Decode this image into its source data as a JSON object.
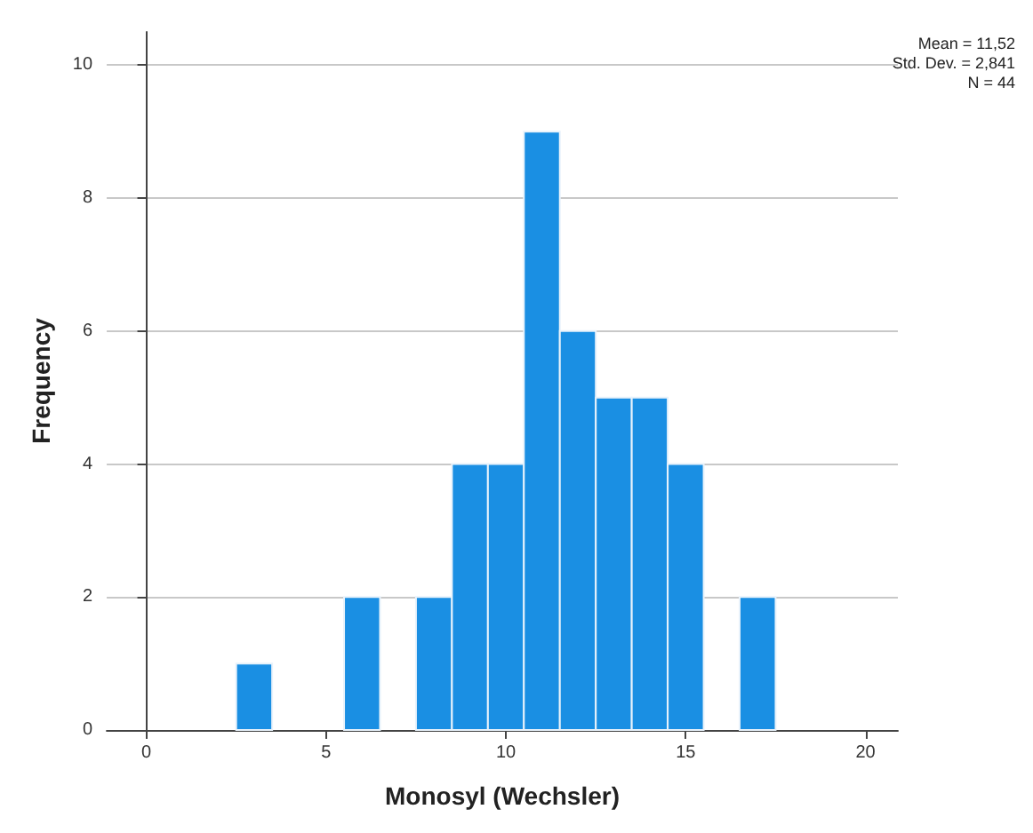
{
  "chart_data": {
    "type": "histogram",
    "xlabel": "Monosyl (Wechsler)",
    "ylabel": "Frequency",
    "bins": [
      2.5,
      3.5,
      4.5,
      5.5,
      6.5,
      7.5,
      8.5,
      9.5,
      10.5,
      11.5,
      12.5,
      13.5,
      14.5,
      15.5,
      16.5,
      17.5
    ],
    "values": [
      1,
      0,
      0,
      2,
      0,
      2,
      4,
      4,
      9,
      6,
      5,
      5,
      4,
      0,
      2
    ],
    "color": "#1a8fe3",
    "xlim": [
      -1.1,
      20.9
    ],
    "xticks": [
      0,
      5,
      10,
      15,
      20
    ],
    "ylim": [
      0,
      10.5
    ],
    "yticks": [
      0,
      2,
      4,
      6,
      8,
      10
    ],
    "grid": "y",
    "annotations": [
      "Mean = 11,52",
      "Std. Dev. = 2,841",
      "N = 44"
    ]
  }
}
